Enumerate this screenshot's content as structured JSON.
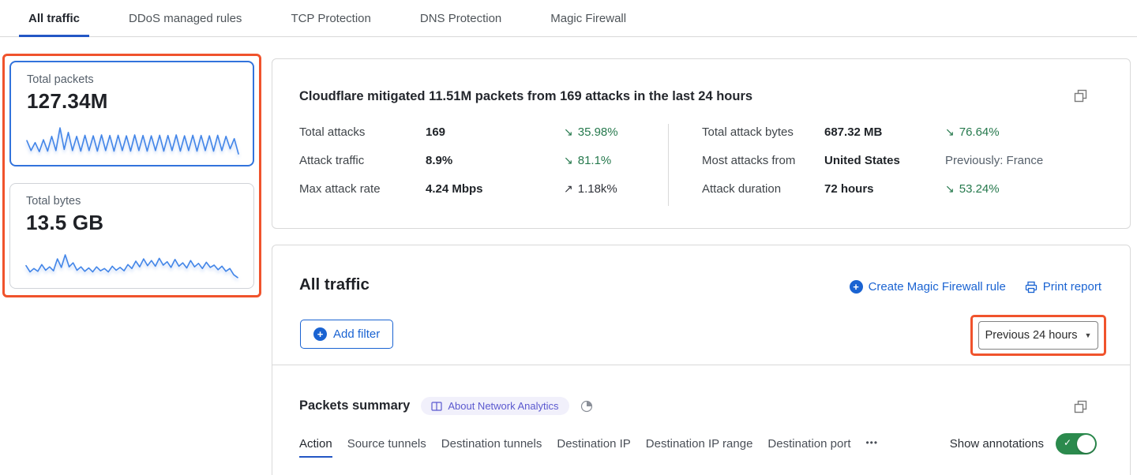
{
  "tabs": {
    "items": [
      {
        "label": "All traffic",
        "active": true
      },
      {
        "label": "DDoS managed rules",
        "active": false
      },
      {
        "label": "TCP Protection",
        "active": false
      },
      {
        "label": "DNS Protection",
        "active": false
      },
      {
        "label": "Magic Firewall",
        "active": false
      }
    ]
  },
  "sidebar": {
    "cards": [
      {
        "title": "Total packets",
        "value": "127.34M",
        "selected": true
      },
      {
        "title": "Total bytes",
        "value": "13.5 GB",
        "selected": false
      }
    ]
  },
  "summary_panel": {
    "heading": "Cloudflare mitigated 11.51M packets from 169 attacks in the last 24 hours",
    "copy_icon": "copy-icon",
    "stats_left": [
      {
        "label": "Total attacks",
        "value": "169",
        "arrow": "↘",
        "delta": "35.98%",
        "tone": "green"
      },
      {
        "label": "Attack traffic",
        "value": "8.9%",
        "arrow": "↘",
        "delta": "81.1%",
        "tone": "green"
      },
      {
        "label": "Max attack rate",
        "value": "4.24 Mbps",
        "arrow": "↗",
        "delta": "1.18k%",
        "tone": "neutral"
      }
    ],
    "stats_right": [
      {
        "label": "Total attack bytes",
        "value": "687.32 MB",
        "arrow": "↘",
        "delta": "76.64%",
        "tone": "green"
      },
      {
        "label": "Most attacks from",
        "value": "United States",
        "arrow": "",
        "delta": "Previously: France",
        "tone": "muted"
      },
      {
        "label": "Attack duration",
        "value": "72 hours",
        "arrow": "↘",
        "delta": "53.24%",
        "tone": "green"
      }
    ]
  },
  "traffic_panel": {
    "heading": "All traffic",
    "create_rule_label": "Create Magic Firewall rule",
    "print_report_label": "Print report",
    "add_filter_label": "Add filter",
    "plus_glyph": "+",
    "time_range_label": "Previous 24 hours",
    "caret_glyph": "▼"
  },
  "packets_summary": {
    "heading": "Packets summary",
    "badge_label": "About Network Analytics",
    "subtabs": [
      {
        "label": "Action",
        "active": true
      },
      {
        "label": "Source tunnels",
        "active": false
      },
      {
        "label": "Destination tunnels",
        "active": false
      },
      {
        "label": "Destination IP",
        "active": false
      },
      {
        "label": "Destination IP range",
        "active": false
      },
      {
        "label": "Destination port",
        "active": false
      }
    ],
    "more_label": "•••",
    "show_annotations_label": "Show annotations",
    "annotations_on": true,
    "toggle_check_glyph": "✓"
  },
  "chart_data": [
    {
      "type": "line",
      "title": "Total packets sparkline (last 24 hours)",
      "unit": "relative 0-100",
      "values": [
        55,
        20,
        48,
        16,
        58,
        18,
        70,
        20,
        100,
        24,
        84,
        20,
        70,
        18,
        74,
        20,
        72,
        18,
        75,
        20,
        73,
        18,
        74,
        20,
        72,
        18,
        75,
        20,
        73,
        18,
        72,
        20,
        74,
        18,
        73,
        20,
        75,
        18,
        72,
        20,
        74,
        18,
        73,
        20,
        72,
        18,
        74,
        20,
        70,
        26,
        62,
        8
      ]
    },
    {
      "type": "line",
      "title": "Total bytes sparkline (last 24 hours)",
      "unit": "relative 0-100",
      "values": [
        48,
        26,
        38,
        28,
        52,
        32,
        44,
        30,
        72,
        42,
        86,
        44,
        58,
        32,
        44,
        28,
        40,
        26,
        44,
        30,
        38,
        26,
        46,
        32,
        42,
        30,
        52,
        38,
        64,
        44,
        72,
        48,
        66,
        46,
        74,
        50,
        62,
        42,
        70,
        46,
        58,
        40,
        66,
        44,
        56,
        38,
        60,
        42,
        50,
        34,
        46,
        28,
        38,
        16,
        6
      ]
    }
  ],
  "colors": {
    "link_blue": "#1a63d2",
    "active_tab_underline": "#2357c5",
    "selected_card_border": "#3273dc",
    "sparkline_blue": "#4285e8",
    "highlight_orange": "#f0532c",
    "delta_green": "#26794d",
    "toggle_green": "#2b8a4d",
    "badge_purple_text": "#5b59cf",
    "badge_purple_bg": "#f1f0fb"
  }
}
